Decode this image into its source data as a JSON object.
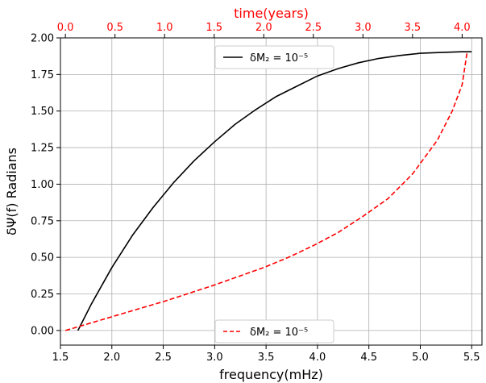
{
  "chart_data": {
    "type": "line",
    "title": "",
    "xlabel": "frequency(mHz)",
    "ylabel": "δΨ(f) Radians",
    "x2label": "time(years)",
    "xlim": [
      1.5,
      5.6
    ],
    "ylim": [
      -0.1,
      2.0
    ],
    "x2lim": [
      -0.05,
      4.2
    ],
    "xticks": [
      "1.5",
      "2.0",
      "2.5",
      "3.0",
      "3.5",
      "4.0",
      "4.5",
      "5.0",
      "5.5"
    ],
    "yticks": [
      "0.00",
      "0.25",
      "0.50",
      "0.75",
      "1.00",
      "1.25",
      "1.50",
      "1.75",
      "2.00"
    ],
    "x2ticks": [
      "0.0",
      "0.5",
      "1.0",
      "1.5",
      "2.0",
      "2.5",
      "3.0",
      "3.5",
      "4.0"
    ],
    "grid": true,
    "colors": {
      "x2_axis": "#ff0000",
      "series_black": "#000000",
      "series_red": "#ff0000"
    },
    "series": [
      {
        "name": "δM₂ = 10⁻⁵",
        "axis": "frequency",
        "color": "#000000",
        "style": "solid",
        "legend_position": "upper-center",
        "x": [
          1.67,
          1.8,
          2.0,
          2.2,
          2.4,
          2.6,
          2.8,
          3.0,
          3.2,
          3.4,
          3.6,
          3.8,
          4.0,
          4.2,
          4.4,
          4.6,
          4.8,
          5.0,
          5.2,
          5.4,
          5.5
        ],
        "y": [
          0.0,
          0.18,
          0.43,
          0.65,
          0.84,
          1.01,
          1.16,
          1.29,
          1.41,
          1.51,
          1.6,
          1.67,
          1.74,
          1.79,
          1.83,
          1.86,
          1.88,
          1.895,
          1.9,
          1.905,
          1.905
        ]
      },
      {
        "name": "δM₂ = 10⁻⁵",
        "axis": "time",
        "color": "#ff0000",
        "style": "dashed",
        "legend_position": "lower-center",
        "x": [
          0.0,
          0.25,
          0.5,
          0.75,
          1.0,
          1.25,
          1.5,
          1.75,
          2.0,
          2.25,
          2.5,
          2.75,
          3.0,
          3.25,
          3.5,
          3.75,
          3.9,
          4.0,
          4.05
        ],
        "y": [
          0.0,
          0.05,
          0.1,
          0.15,
          0.2,
          0.255,
          0.31,
          0.37,
          0.43,
          0.5,
          0.58,
          0.67,
          0.78,
          0.9,
          1.07,
          1.3,
          1.5,
          1.68,
          1.9
        ]
      }
    ]
  }
}
